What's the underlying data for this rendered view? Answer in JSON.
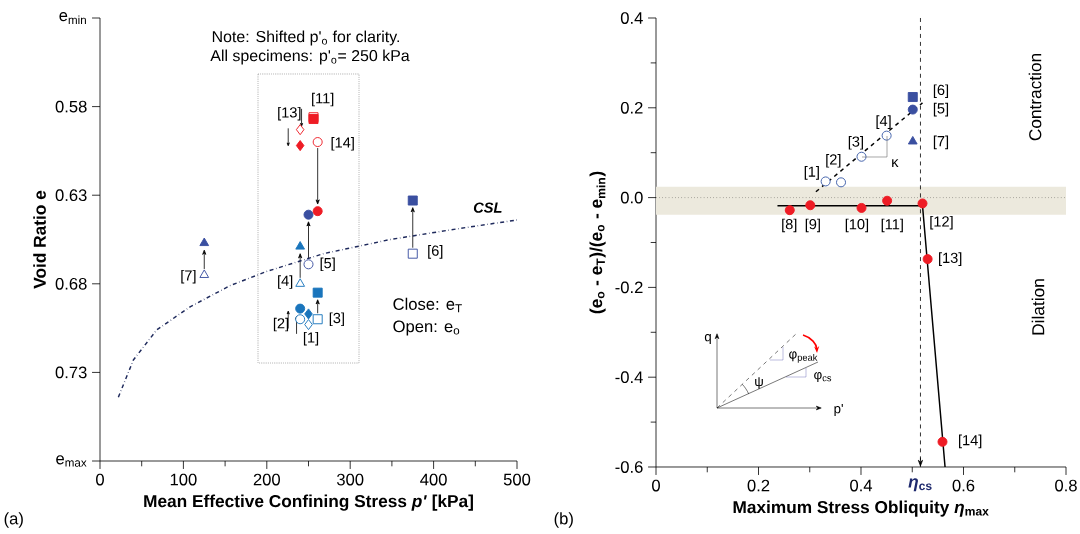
{
  "chart_data": [
    {
      "type": "scatter",
      "xlabel": "Mean Effective Confining Stress *p'* [kPa]",
      "ylabel": "Void Ratio e",
      "xlim": [
        0,
        500
      ],
      "xticks": [
        0,
        100,
        200,
        300,
        400,
        500
      ],
      "ylim": [
        0.78,
        0.53
      ],
      "yticks": [
        {
          "value": 0.53,
          "label": "e$_{min}$"
        },
        0.58,
        0.63,
        0.68,
        0.73,
        {
          "value": 0.78,
          "label": "e$_{max}$"
        }
      ],
      "series": [
        {
          "marker": "diamond",
          "color": "#1a75bc",
          "x": [
            250,
            250
          ],
          "values": [
            0.703,
            0.697
          ]
        },
        {
          "marker": "circle",
          "color": "#1a75bc",
          "x": [
            240,
            240
          ],
          "values": [
            0.7,
            0.694
          ]
        },
        {
          "marker": "square",
          "color": "#1a75bc",
          "x": [
            261,
            261
          ],
          "values": [
            0.7,
            0.685
          ]
        },
        {
          "marker": "triangle",
          "color": "#1a75bc",
          "x": [
            240,
            240
          ],
          "values": [
            0.68,
            0.659
          ]
        },
        {
          "marker": "circle",
          "color": "#3a4fa0",
          "x": [
            250,
            250
          ],
          "values": [
            0.669,
            0.641
          ]
        },
        {
          "marker": "square",
          "color": "#3a4fa0",
          "x": [
            375,
            375
          ],
          "values": [
            0.663,
            0.633
          ]
        },
        {
          "marker": "triangle",
          "color": "#3a4fa0",
          "x": [
            125,
            125
          ],
          "values": [
            0.675,
            0.657
          ]
        },
        {
          "marker": "square",
          "color": "#ee1c25",
          "x": [
            256,
            256
          ],
          "values": [
            0.586,
            0.587
          ]
        },
        {
          "marker": "diamond",
          "color": "#ee1c25",
          "x": [
            240,
            240
          ],
          "values": [
            0.593,
            0.602
          ]
        },
        {
          "marker": "circle",
          "color": "#ee1c25",
          "x": [
            261,
            261
          ],
          "values": [
            0.6,
            0.639
          ]
        },
        {
          "type": "line",
          "marker": "none",
          "line_style": "dashdot",
          "color": "#1f2a5c",
          "x": [
            22,
            40,
            68,
            108,
            156,
            200,
            268,
            348,
            428,
            500
          ],
          "values": [
            0.744,
            0.723,
            0.706,
            0.693,
            0.681,
            0.673,
            0.663,
            0.655,
            0.649,
            0.644
          ]
        }
      ],
      "annotations": [
        "Note: Shifted p'$_{o}$ for clarity.",
        "All specimens: p'$_{o}$= 250 kPa",
        "Close: e$_{T}$",
        "Open: e$_{o}$",
        "(a)",
        "[1]",
        "[2]",
        "[3]",
        "[4]",
        "[5]",
        "[6]",
        "[7]",
        "[11]",
        "[13]",
        "[14]",
        "CSL"
      ]
    },
    {
      "type": "scatter",
      "xlabel": "Maximum Stress Obliquity *η*$_{max}$",
      "ylabel": "(e$_{o}$ - e$_{T}$)/(e$_{o}$ - e$_{min}$)",
      "xlim": [
        0,
        0.8
      ],
      "xticks": [
        0,
        0.2,
        0.4,
        0.6,
        0.8
      ],
      "ylim": [
        -0.6,
        0.4
      ],
      "yticks": [
        -0.6,
        -0.4,
        -0.2,
        {
          "value": 0,
          "label": "0.0"
        },
        0.2,
        0.4
      ],
      "series": [
        {
          "type": "line",
          "marker": "none",
          "line_style": "dashed",
          "color": "#000000",
          "x": [
            0.312,
            0.52
          ],
          "values": [
            0.013,
            0.211
          ]
        },
        {
          "type": "line",
          "marker": "none",
          "line_style": "solid",
          "color": "#000000",
          "x": [
            0.237,
            0.52,
            0.564
          ],
          "values": [
            -0.018,
            -0.018,
            -0.6
          ]
        },
        {
          "marker": "circle",
          "color": "#3a5ba8",
          "x": [
            0.331,
            0.361,
            0.401,
            0.45
          ],
          "values": [
            0.036,
            0.034,
            0.091,
            0.138
          ]
        },
        {
          "marker": "square",
          "color": "#3a4fa0",
          "x": [
            0.501
          ],
          "values": [
            0.224
          ]
        },
        {
          "marker": "circle",
          "color": "#3a4fa0",
          "x": [
            0.501
          ],
          "values": [
            0.196
          ]
        },
        {
          "marker": "triangle",
          "color": "#3a4fa0",
          "x": [
            0.501
          ],
          "values": [
            0.125
          ]
        },
        {
          "marker": "circle",
          "color": "#ee1c25",
          "x": [
            0.261,
            0.301,
            0.401,
            0.451,
            0.52,
            0.53,
            0.559
          ],
          "values": [
            -0.028,
            -0.017,
            -0.023,
            -0.007,
            -0.013,
            -0.137,
            -0.544
          ]
        }
      ],
      "ref_lines": [
        {
          "axis": "x",
          "value": 0.516,
          "label": "*η*$_{cs}$",
          "line_style": "dashed",
          "color": "#000000"
        },
        {
          "axis": "y",
          "value": 0,
          "line_style": "dotted",
          "color": "#000000"
        }
      ],
      "bands": [
        {
          "axis": "y",
          "from": -0.038,
          "to": 0.024,
          "color": "#ece9dd"
        }
      ],
      "annotations": [
        "Contraction",
        "Dilation",
        "(b)",
        "q",
        "p'",
        "ψ",
        "φ$_{peak}$",
        "φ$_{cs}$",
        "[1]",
        "[2]",
        "[3]",
        "[4]",
        "[5]",
        "[6]",
        "[7]",
        "[8]",
        "[9]",
        "[10]",
        "[11]",
        "[12]",
        "[13]",
        "[14]",
        "κ"
      ]
    }
  ]
}
